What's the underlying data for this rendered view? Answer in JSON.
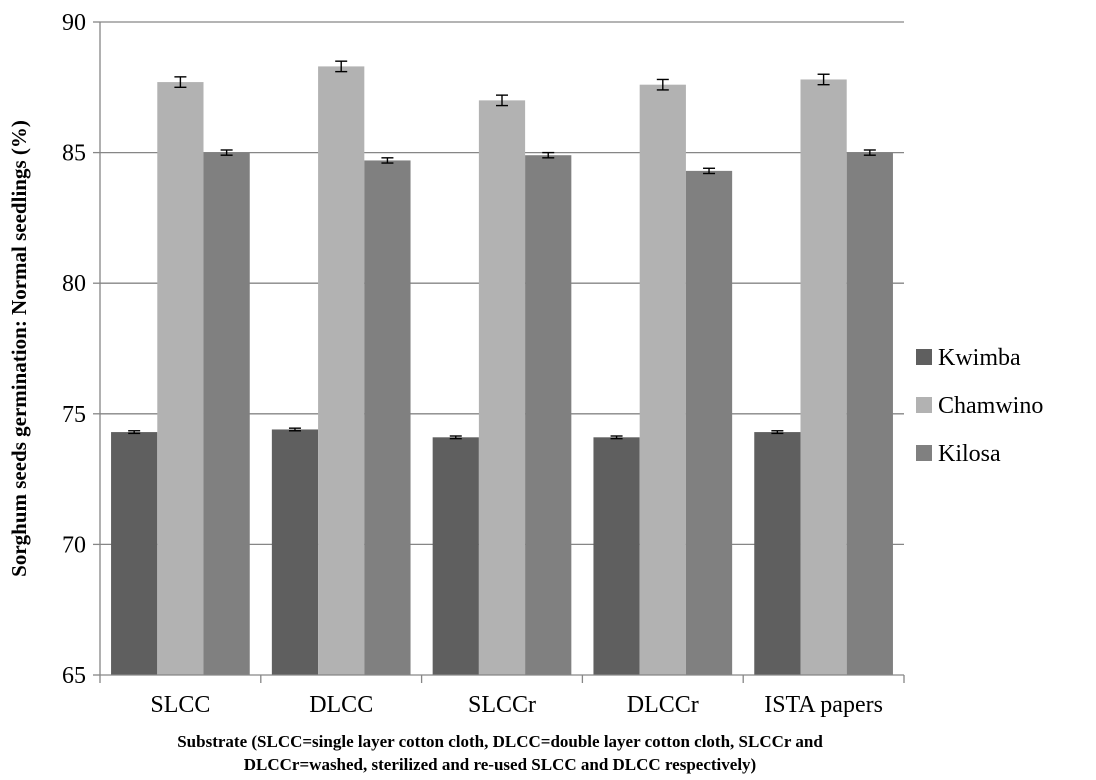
{
  "chart_data": {
    "type": "bar",
    "categories": [
      "SLCC",
      "DLCC",
      "SLCCr",
      "DLCCr",
      "ISTA papers"
    ],
    "series": [
      {
        "name": "Kwimba",
        "color": "#5f5f5f",
        "values": [
          74.3,
          74.4,
          74.1,
          74.1,
          74.3
        ],
        "errors": [
          0.05,
          0.05,
          0.05,
          0.05,
          0.05
        ]
      },
      {
        "name": "Chamwino",
        "color": "#b2b2b2",
        "values": [
          87.7,
          88.3,
          87.0,
          87.6,
          87.8
        ],
        "errors": [
          0.2,
          0.2,
          0.2,
          0.2,
          0.2
        ]
      },
      {
        "name": "Kilosa",
        "color": "#808080",
        "values": [
          85.0,
          84.7,
          84.9,
          84.3,
          85.0
        ],
        "errors": [
          0.1,
          0.1,
          0.1,
          0.1,
          0.1
        ]
      }
    ],
    "ylabel": "Sorghum seeds germination: Normal seedlings (%)",
    "xlabel_line1": "Substrate (SLCC=single layer cotton cloth, DLCC=double layer cotton cloth, SLCCr and",
    "xlabel_line2": "DLCCr=washed, sterilized and re-used SLCC and DLCC respectively)",
    "ylim": [
      65,
      90
    ],
    "yticks": [
      65,
      70,
      75,
      80,
      85,
      90
    ],
    "grid": true,
    "legend_position": "right"
  }
}
